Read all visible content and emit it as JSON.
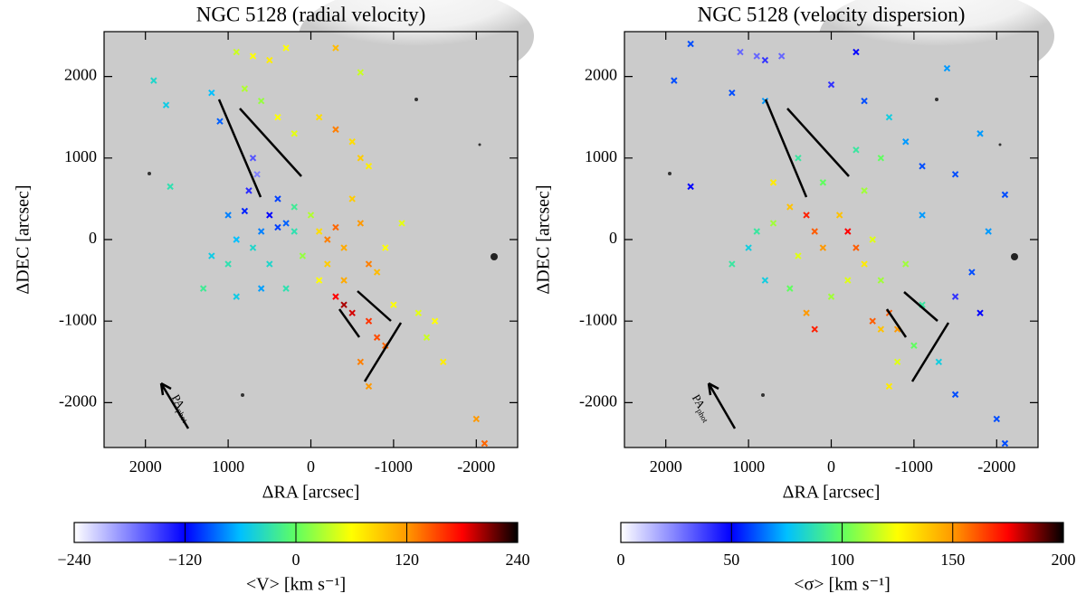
{
  "chart_data": [
    {
      "type": "scatter",
      "title": "NGC 5128 (radial velocity)",
      "xlabel": "ΔRA [arcsec]",
      "ylabel": "ΔDEC [arcsec]",
      "xlim": [
        2500,
        -2500
      ],
      "ylim": [
        -2550,
        2550
      ],
      "xticks": [
        2000,
        1000,
        0,
        -1000,
        -2000
      ],
      "yticks": [
        -2000,
        -1000,
        0,
        1000,
        2000
      ],
      "annotation": "PA",
      "annotation_sub": "phot",
      "colormap": [
        "#ffffff",
        "#8080ff",
        "#0000ff",
        "#00c0ff",
        "#60ff60",
        "#ffff00",
        "#ff9900",
        "#ff0000",
        "#000000"
      ],
      "colorbar": {
        "label": "<V> [km s⁻¹]",
        "lim": [
          -240,
          240
        ],
        "ticks": [
          {
            "value": -240,
            "label": "−240"
          },
          {
            "value": -120,
            "label": "−120"
          },
          0,
          120,
          240
        ]
      },
      "x": [
        1900,
        1750,
        1200,
        1100,
        900,
        700,
        500,
        300,
        -300,
        -600,
        800,
        600,
        400,
        200,
        -100,
        -300,
        -500,
        -700,
        1700,
        700,
        650,
        750,
        800,
        500,
        400,
        300,
        600,
        900,
        700,
        1000,
        500,
        200,
        100,
        -100,
        -200,
        -300,
        -400,
        -200,
        -100,
        0,
        200,
        -500,
        -600,
        -700,
        -400,
        -300,
        -400,
        -500,
        -700,
        -800,
        -900,
        -600,
        -700,
        -1000,
        -1300,
        -1400,
        -1600,
        -2000,
        -2100,
        1300,
        900,
        600,
        300,
        400,
        1000,
        1200,
        -800,
        -900,
        -1100,
        -1500,
        -600
      ],
      "y": [
        1950,
        1650,
        1800,
        1450,
        2300,
        2250,
        2200,
        2350,
        2350,
        2050,
        1850,
        1700,
        1500,
        1300,
        1500,
        1350,
        1200,
        900,
        650,
        1000,
        800,
        600,
        350,
        300,
        150,
        200,
        100,
        0,
        -100,
        -300,
        -300,
        100,
        -200,
        100,
        0,
        150,
        -100,
        -300,
        -500,
        300,
        400,
        500,
        200,
        -300,
        -500,
        -700,
        -800,
        -900,
        -1000,
        -1200,
        -1300,
        -1500,
        -1800,
        -800,
        -900,
        -1200,
        -1500,
        -2200,
        -2500,
        -600,
        -700,
        -600,
        -600,
        500,
        300,
        -200,
        -400,
        -100,
        200,
        -1000,
        1000
      ],
      "values": [
        -40,
        -50,
        -60,
        -90,
        40,
        60,
        70,
        60,
        100,
        40,
        30,
        20,
        60,
        50,
        80,
        130,
        80,
        70,
        -30,
        -160,
        -180,
        -140,
        -110,
        -120,
        -100,
        -90,
        -80,
        -60,
        -40,
        -30,
        -40,
        -30,
        20,
        80,
        130,
        140,
        110,
        90,
        60,
        30,
        -20,
        90,
        120,
        130,
        110,
        180,
        200,
        190,
        160,
        150,
        140,
        130,
        120,
        60,
        50,
        40,
        70,
        120,
        140,
        -20,
        -50,
        -70,
        -30,
        -100,
        -80,
        -50,
        100,
        60,
        50,
        60,
        90
      ]
    },
    {
      "type": "scatter",
      "title": "NGC 5128 (velocity dispersion)",
      "xlabel": "ΔRA [arcsec]",
      "ylabel": "ΔDEC [arcsec]",
      "xlim": [
        2500,
        -2500
      ],
      "ylim": [
        -2550,
        2550
      ],
      "xticks": [
        2000,
        1000,
        0,
        -1000,
        -2000
      ],
      "yticks": [
        -2000,
        -1000,
        0,
        1000,
        2000
      ],
      "annotation": "PA",
      "annotation_sub": "phot",
      "colormap": [
        "#ffffff",
        "#8080ff",
        "#0000ff",
        "#00c0ff",
        "#60ff60",
        "#ffff00",
        "#ff9900",
        "#ff0000",
        "#000000"
      ],
      "colorbar": {
        "label": "<σ> [km s⁻¹]",
        "lim": [
          0,
          200
        ],
        "ticks": [
          0,
          50,
          100,
          150,
          200
        ]
      },
      "x": [
        1700,
        1100,
        900,
        800,
        600,
        -300,
        -1400,
        1900,
        1200,
        800,
        0,
        -400,
        -700,
        -900,
        -1100,
        -1500,
        -1800,
        -2100,
        -1900,
        -1700,
        -1500,
        -1800,
        -2000,
        -2100,
        1700,
        700,
        500,
        700,
        900,
        1000,
        1200,
        300,
        200,
        100,
        -100,
        -200,
        -300,
        -400,
        -200,
        0,
        400,
        500,
        800,
        -500,
        -600,
        -700,
        -800,
        -600,
        -500,
        -800,
        -700,
        -1000,
        -1300,
        -1500,
        -1100,
        -900,
        -1100,
        300,
        200,
        -400,
        -600,
        -300,
        100,
        400
      ],
      "y": [
        2400,
        2300,
        2250,
        2200,
        2250,
        2300,
        2100,
        1950,
        1800,
        1700,
        1900,
        1700,
        1500,
        1200,
        900,
        800,
        1300,
        550,
        100,
        -400,
        -700,
        -900,
        -2200,
        -2500,
        650,
        700,
        400,
        200,
        100,
        -100,
        -300,
        300,
        100,
        -100,
        300,
        100,
        -100,
        -300,
        -500,
        -700,
        -200,
        -600,
        -500,
        0,
        -500,
        -900,
        -1100,
        -1100,
        -1000,
        -1500,
        -1800,
        -1300,
        -1500,
        -1900,
        -800,
        -300,
        300,
        -900,
        -1100,
        600,
        1000,
        1100,
        700,
        1000
      ],
      "values": [
        60,
        30,
        30,
        40,
        30,
        50,
        70,
        60,
        60,
        70,
        40,
        60,
        80,
        70,
        60,
        60,
        70,
        60,
        70,
        60,
        40,
        50,
        60,
        60,
        50,
        130,
        140,
        110,
        90,
        80,
        90,
        170,
        160,
        150,
        140,
        175,
        160,
        130,
        120,
        110,
        120,
        100,
        80,
        120,
        110,
        160,
        150,
        140,
        160,
        120,
        130,
        100,
        80,
        60,
        90,
        110,
        70,
        150,
        170,
        110,
        100,
        90,
        100,
        90
      ]
    }
  ]
}
